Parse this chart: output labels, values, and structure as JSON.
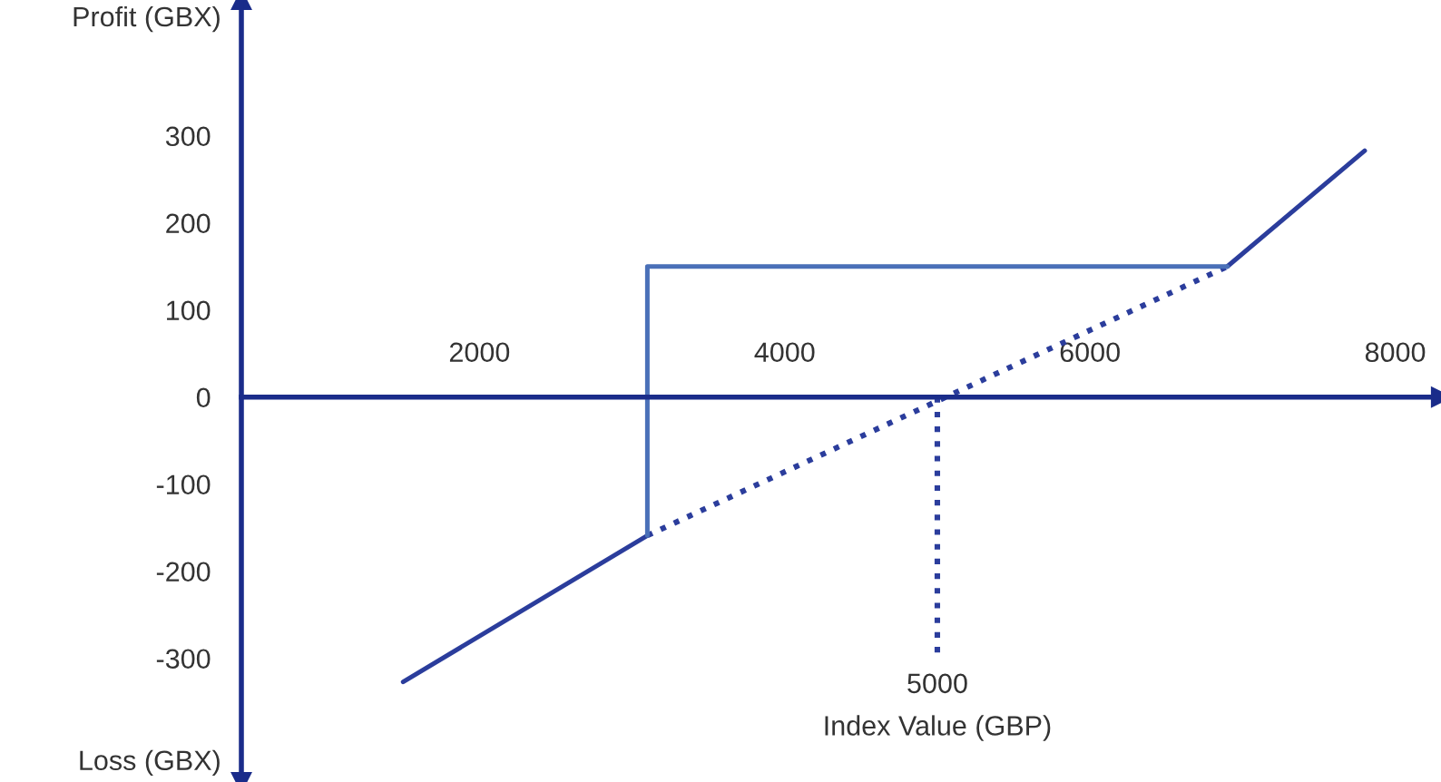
{
  "chart_data": {
    "type": "line",
    "ylabel": "Profit (GBX)",
    "xlabel": "Index Value (GBP)",
    "annotations": [
      "5000",
      "Loss (GBX)"
    ],
    "xlim": [
      440,
      8300
    ],
    "ylim": [
      -442,
      456
    ],
    "xticks": [
      2000,
      4000,
      6000,
      8000
    ],
    "yticks": [
      -300,
      -200,
      -100,
      0,
      100,
      200,
      300
    ],
    "grid": false,
    "legend": false,
    "ref_lines": [
      {
        "axis": "x",
        "value": 5000,
        "color": "#2b3d9c",
        "line_style": "dotted"
      }
    ],
    "series": [
      {
        "color": "#2b3d9c",
        "line_style": "solid",
        "x": [
          1500,
          3100
        ],
        "values": [
          -327,
          -159
        ]
      },
      {
        "color": "#2b3d9c",
        "line_style": "dotted",
        "x": [
          3100,
          6900
        ],
        "values": [
          -159,
          150
        ]
      },
      {
        "color": "#2b3d9c",
        "line_style": "solid",
        "x": [
          6900,
          7800
        ],
        "values": [
          150,
          283
        ]
      },
      {
        "color": "#4a70b8",
        "line_style": "solid",
        "x": [
          3100,
          3100,
          6900
        ],
        "values": [
          -159,
          150,
          150
        ]
      }
    ]
  }
}
